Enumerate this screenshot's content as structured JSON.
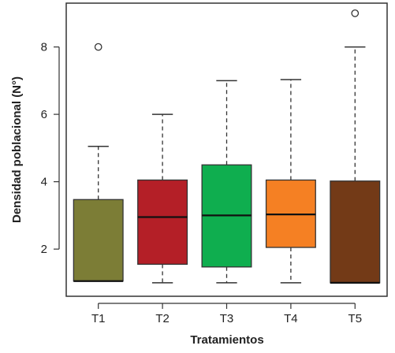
{
  "chart_data": {
    "type": "boxplot",
    "title": "",
    "xlabel": "Tratamientos",
    "ylabel": "Densidad poblacional (N°)",
    "categories": [
      "T1",
      "T2",
      "T3",
      "T4",
      "T5"
    ],
    "y_ticks": [
      2,
      4,
      6,
      8
    ],
    "ylim": [
      0.6,
      9.3
    ],
    "grid": false,
    "legend": "none",
    "boxes": [
      {
        "category": "T1",
        "whisker_low": 1.05,
        "q1": 1.05,
        "median": 1.05,
        "q3": 3.47,
        "whisker_high": 5.05,
        "outliers": [
          8.0
        ],
        "color": "#7c7d36"
      },
      {
        "category": "T2",
        "whisker_low": 1.0,
        "q1": 1.55,
        "median": 2.95,
        "q3": 4.05,
        "whisker_high": 6.0,
        "outliers": [],
        "color": "#b41f27"
      },
      {
        "category": "T3",
        "whisker_low": 1.0,
        "q1": 1.47,
        "median": 3.0,
        "q3": 4.5,
        "whisker_high": 7.0,
        "outliers": [],
        "color": "#0fae4f"
      },
      {
        "category": "T4",
        "whisker_low": 1.0,
        "q1": 2.05,
        "median": 3.03,
        "q3": 4.05,
        "whisker_high": 7.03,
        "outliers": [],
        "color": "#f58023"
      },
      {
        "category": "T5",
        "whisker_low": 1.0,
        "q1": 1.0,
        "median": 1.0,
        "q3": 4.02,
        "whisker_high": 8.0,
        "outliers": [
          9.0
        ],
        "color": "#733a17"
      }
    ]
  }
}
